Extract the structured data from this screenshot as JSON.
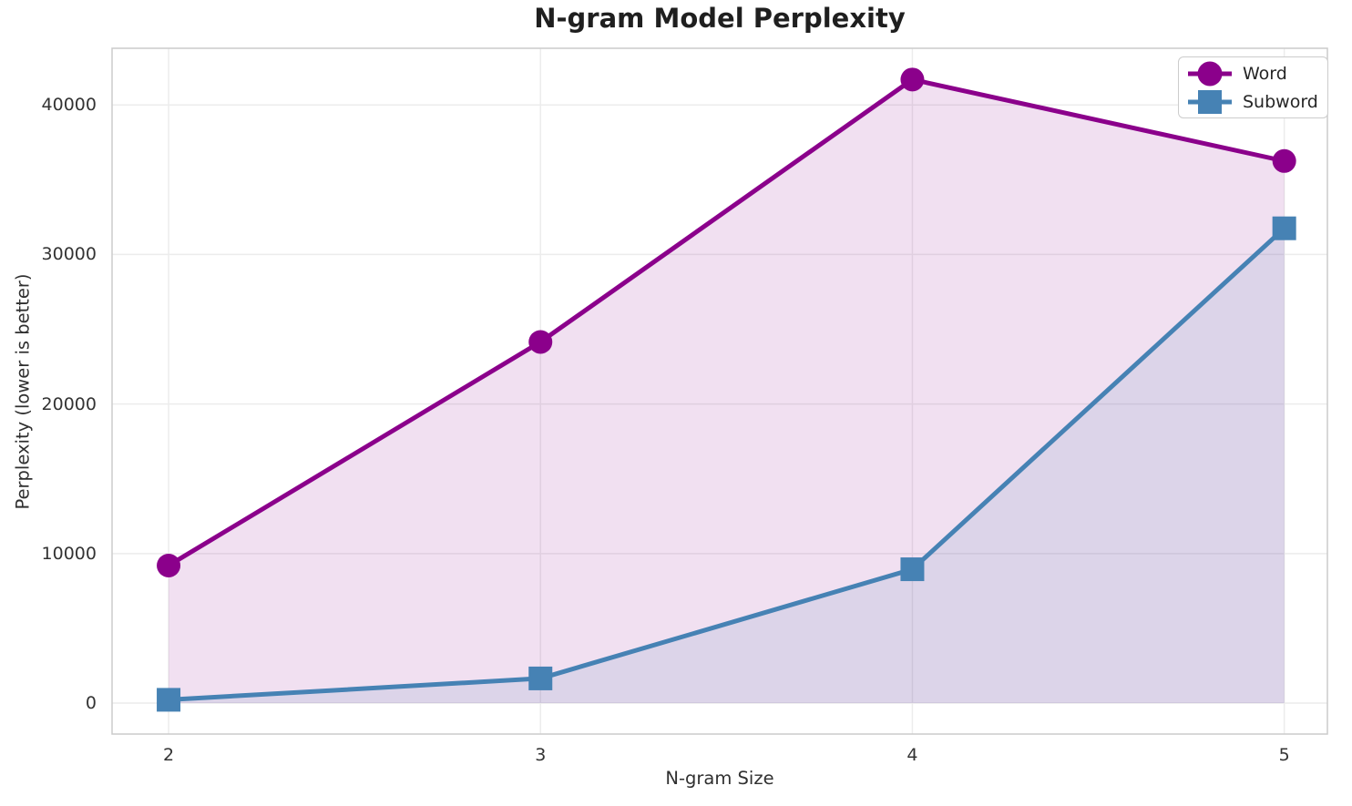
{
  "chart_data": {
    "type": "line",
    "title": "N-gram Model Perplexity",
    "xlabel": "N-gram Size",
    "ylabel": "Perplexity (lower is better)",
    "x": [
      2,
      3,
      4,
      5
    ],
    "series": [
      {
        "name": "Word",
        "marker": "circle",
        "color": "#8B008B",
        "values": [
          9200,
          24150,
          41700,
          36250
        ]
      },
      {
        "name": "Subword",
        "marker": "square",
        "color": "#4682B4",
        "values": [
          220,
          1650,
          8950,
          31750
        ]
      }
    ],
    "x_ticks": [
      "2",
      "3",
      "4",
      "5"
    ],
    "x_tick_values": [
      2,
      3,
      4,
      5
    ],
    "y_ticks": [
      "0",
      "10000",
      "20000",
      "30000",
      "40000"
    ],
    "y_tick_values": [
      0,
      10000,
      20000,
      30000,
      40000
    ],
    "xlim": [
      1.848,
      5.116
    ],
    "ylim": [
      -2070,
      43790
    ],
    "grid": true,
    "legend_position": "upper right",
    "fill_to_zero": true,
    "fill_alpha": 0.12
  },
  "colors": {
    "grid": "#ECECEC",
    "spine": "#CBCBCB",
    "background": "#FFFFFF"
  }
}
